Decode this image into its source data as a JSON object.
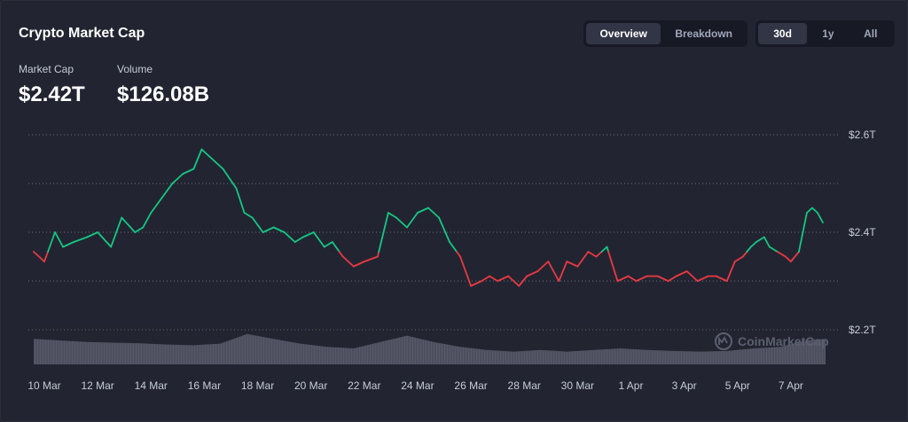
{
  "card": {
    "title": "Crypto Market Cap",
    "stats": [
      {
        "label": "Market Cap",
        "value": "$2.42T"
      },
      {
        "label": "Volume",
        "value": "$126.08B"
      }
    ]
  },
  "view_toggle": [
    {
      "label": "Overview",
      "active": true
    },
    {
      "label": "Breakdown",
      "active": false
    }
  ],
  "range_toggle": [
    {
      "label": "30d",
      "active": true
    },
    {
      "label": "1y",
      "active": false
    },
    {
      "label": "All",
      "active": false
    }
  ],
  "watermark": "CoinMarketCap",
  "colors": {
    "up": "#16c784",
    "down": "#ea3943",
    "grid": "#6b6f7e",
    "volume": "#5f6272",
    "background": "#222531"
  },
  "chart_data": {
    "type": "line",
    "title": "",
    "xlabel": "",
    "ylabel": "",
    "y_unit": "T",
    "ylim": [
      2.2,
      2.6
    ],
    "y_ticks": [
      {
        "value": 2.6,
        "label": "$2.6T"
      },
      {
        "value": 2.4,
        "label": "$2.4T"
      },
      {
        "value": 2.2,
        "label": "$2.2T"
      }
    ],
    "reference_line": 2.36,
    "x_ticks": [
      "10 Mar",
      "12 Mar",
      "14 Mar",
      "16 Mar",
      "18 Mar",
      "20 Mar",
      "22 Mar",
      "24 Mar",
      "26 Mar",
      "28 Mar",
      "30 Mar",
      "1 Apr",
      "3 Apr",
      "5 Apr",
      "7 Apr"
    ],
    "x_range_days": [
      0,
      29.7
    ],
    "grid": "horizontal dotted",
    "series": [
      {
        "type": "line",
        "x": [
          0,
          0.4,
          0.8,
          1.1,
          1.5,
          2.0,
          2.4,
          2.9,
          3.3,
          3.8,
          4.1,
          4.4,
          4.8,
          5.2,
          5.6,
          6.0,
          6.3,
          6.7,
          7.1,
          7.6,
          7.9,
          8.2,
          8.6,
          9.0,
          9.4,
          9.8,
          10.1,
          10.5,
          10.9,
          11.2,
          11.6,
          12.0,
          12.4,
          12.9,
          13.3,
          13.6,
          14.0,
          14.4,
          14.8,
          15.2,
          15.6,
          16.0,
          16.4,
          16.8,
          17.1,
          17.4,
          17.8,
          18.2,
          18.5,
          18.9,
          19.3,
          19.7,
          20.0,
          20.4,
          20.8,
          21.1,
          21.5,
          21.9,
          22.3,
          22.6,
          23.0,
          23.4,
          23.8,
          24.1,
          24.5,
          24.9,
          25.3,
          25.6,
          26.0,
          26.3,
          26.6,
          26.9,
          27.1,
          27.4,
          27.6,
          27.9,
          28.2,
          28.4,
          28.7,
          29.0,
          29.2,
          29.4,
          29.6
        ],
        "values": [
          2.36,
          2.34,
          2.4,
          2.37,
          2.38,
          2.39,
          2.4,
          2.37,
          2.43,
          2.4,
          2.41,
          2.44,
          2.47,
          2.5,
          2.52,
          2.53,
          2.57,
          2.55,
          2.53,
          2.49,
          2.44,
          2.43,
          2.4,
          2.41,
          2.4,
          2.38,
          2.39,
          2.4,
          2.37,
          2.38,
          2.35,
          2.33,
          2.34,
          2.35,
          2.44,
          2.43,
          2.41,
          2.44,
          2.45,
          2.43,
          2.38,
          2.35,
          2.29,
          2.3,
          2.31,
          2.3,
          2.31,
          2.29,
          2.31,
          2.32,
          2.34,
          2.3,
          2.34,
          2.33,
          2.36,
          2.35,
          2.37,
          2.3,
          2.31,
          2.3,
          2.31,
          2.31,
          2.3,
          2.31,
          2.32,
          2.3,
          2.31,
          2.31,
          2.3,
          2.34,
          2.35,
          2.37,
          2.38,
          2.39,
          2.37,
          2.36,
          2.35,
          2.34,
          2.36,
          2.44,
          2.45,
          2.44,
          2.42
        ]
      },
      {
        "type": "area",
        "name": "Volume",
        "x": [
          0,
          1,
          2,
          3,
          4,
          5,
          6,
          7,
          8,
          9,
          10,
          11,
          12,
          13,
          14,
          15,
          16,
          17,
          18,
          19,
          20,
          21,
          22,
          23,
          24,
          25,
          26,
          27,
          28,
          29,
          29.7
        ],
        "relative_values": [
          0.8,
          0.75,
          0.7,
          0.68,
          0.66,
          0.62,
          0.6,
          0.65,
          0.95,
          0.8,
          0.65,
          0.55,
          0.5,
          0.7,
          0.9,
          0.7,
          0.55,
          0.45,
          0.4,
          0.45,
          0.4,
          0.45,
          0.5,
          0.45,
          0.42,
          0.4,
          0.42,
          0.5,
          0.55,
          0.75,
          0.8
        ]
      }
    ]
  }
}
